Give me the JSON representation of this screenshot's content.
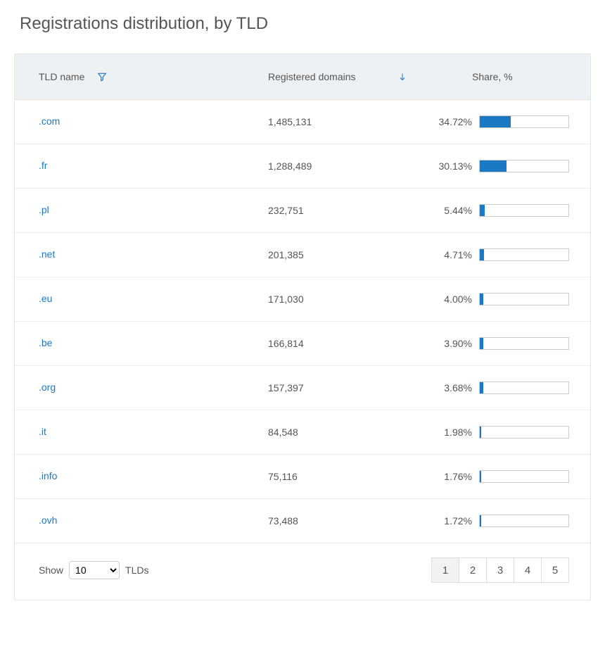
{
  "title": "Registrations distribution, by TLD",
  "columns": {
    "name": "TLD name",
    "registered": "Registered domains",
    "share": "Share, %"
  },
  "colors": {
    "link": "#1b79c4",
    "bar_fill": "#1b79c4",
    "bar_border": "#cccccc",
    "header_bg": "#edf1f4",
    "text": "#555555",
    "filter_icon": "#1b79c4",
    "sort_icon": "#1b79c4"
  },
  "bar_max_percent": 100,
  "rows": [
    {
      "tld": ".com",
      "registered": "1,485,131",
      "share_pct": "34.72%",
      "share_val": 34.72
    },
    {
      "tld": ".fr",
      "registered": "1,288,489",
      "share_pct": "30.13%",
      "share_val": 30.13
    },
    {
      "tld": ".pl",
      "registered": "232,751",
      "share_pct": "5.44%",
      "share_val": 5.44
    },
    {
      "tld": ".net",
      "registered": "201,385",
      "share_pct": "4.71%",
      "share_val": 4.71
    },
    {
      "tld": ".eu",
      "registered": "171,030",
      "share_pct": "4.00%",
      "share_val": 4.0
    },
    {
      "tld": ".be",
      "registered": "166,814",
      "share_pct": "3.90%",
      "share_val": 3.9
    },
    {
      "tld": ".org",
      "registered": "157,397",
      "share_pct": "3.68%",
      "share_val": 3.68
    },
    {
      "tld": ".it",
      "registered": "84,548",
      "share_pct": "1.98%",
      "share_val": 1.98
    },
    {
      "tld": ".info",
      "registered": "75,116",
      "share_pct": "1.76%",
      "share_val": 1.76
    },
    {
      "tld": ".ovh",
      "registered": "73,488",
      "share_pct": "1.72%",
      "share_val": 1.72
    }
  ],
  "footer": {
    "show_label_pre": "Show",
    "show_label_post": "TLDs",
    "page_size": "10",
    "pages": [
      "1",
      "2",
      "3",
      "4",
      "5"
    ],
    "current_page": "1"
  }
}
